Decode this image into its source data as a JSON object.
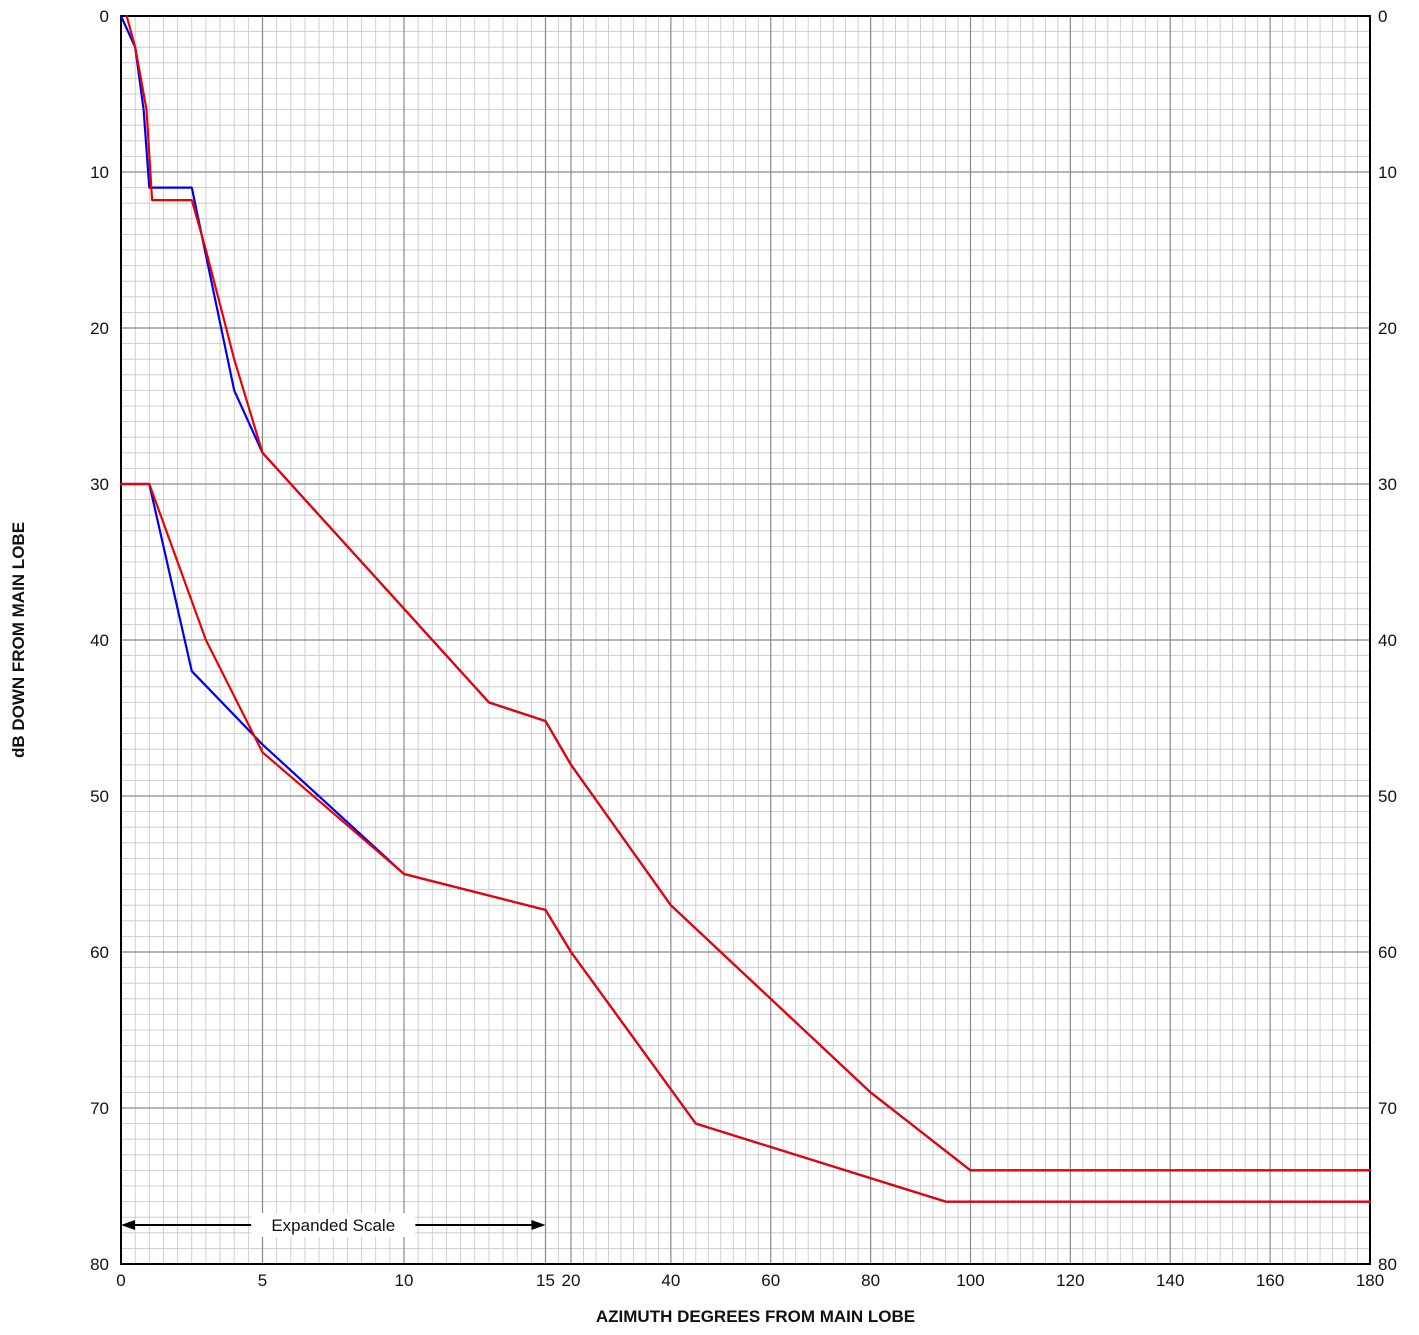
{
  "chart_data": {
    "type": "line",
    "title": "",
    "xlabel": "AZIMUTH DEGREES FROM MAIN LOBE",
    "ylabel": "dB DOWN FROM MAIN LOBE",
    "x_scale": "piecewise: 0-15 expanded scale, 15-180 compressed scale",
    "xlim": [
      0,
      180
    ],
    "ylim": [
      0,
      80
    ],
    "y_inverted": true,
    "grid": true,
    "x_ticks_expanded": [
      0,
      5,
      10,
      15
    ],
    "x_ticks_compressed": [
      20,
      40,
      60,
      80,
      100,
      120,
      140,
      160,
      180
    ],
    "x_tick_labels": [
      "0",
      "5",
      "10",
      "15",
      "20",
      "40",
      "60",
      "80",
      "100",
      "120",
      "140",
      "160",
      "180"
    ],
    "y_ticks": [
      0,
      10,
      20,
      30,
      40,
      50,
      60,
      70,
      80
    ],
    "y_tick_labels": [
      "0",
      "10",
      "20",
      "30",
      "40",
      "50",
      "60",
      "70",
      "80"
    ],
    "colors": {
      "blue": "#0000ee",
      "red": "#ee0000",
      "grid_major": "#888888",
      "grid_minor": "#c4c4c4"
    },
    "annotation": {
      "text": "Expanded Scale",
      "from_x": 0,
      "to_x": 15,
      "y": 77.5
    },
    "series": [
      {
        "color": "blue",
        "points": [
          [
            0,
            0
          ],
          [
            0.5,
            2
          ],
          [
            0.8,
            6
          ],
          [
            1,
            11
          ],
          [
            2.5,
            11
          ],
          [
            4,
            24
          ],
          [
            5,
            28
          ],
          [
            10,
            38
          ],
          [
            13,
            44
          ],
          [
            15,
            45.2
          ],
          [
            20,
            48
          ],
          [
            40,
            57
          ],
          [
            60,
            63
          ],
          [
            80,
            69
          ],
          [
            100,
            74
          ],
          [
            180,
            74
          ]
        ]
      },
      {
        "color": "red",
        "points": [
          [
            0.2,
            0
          ],
          [
            0.5,
            2
          ],
          [
            0.9,
            6
          ],
          [
            1.1,
            11.8
          ],
          [
            2.5,
            11.8
          ],
          [
            3,
            15
          ],
          [
            4,
            22
          ],
          [
            5,
            28
          ],
          [
            10,
            38
          ],
          [
            13,
            44
          ],
          [
            15,
            45.2
          ],
          [
            20,
            48
          ],
          [
            40,
            57
          ],
          [
            60,
            63
          ],
          [
            80,
            69
          ],
          [
            100,
            74
          ],
          [
            180,
            74
          ]
        ]
      },
      {
        "color": "blue",
        "points": [
          [
            0,
            30
          ],
          [
            1,
            30
          ],
          [
            2.5,
            42
          ],
          [
            5,
            46.7
          ],
          [
            10,
            55
          ],
          [
            15,
            57.3
          ],
          [
            20,
            60
          ],
          [
            45,
            71
          ],
          [
            80,
            74.5
          ],
          [
            95,
            76
          ],
          [
            180,
            76
          ]
        ]
      },
      {
        "color": "red",
        "points": [
          [
            0,
            30
          ],
          [
            1,
            30
          ],
          [
            3,
            40
          ],
          [
            5,
            47.2
          ],
          [
            10,
            55
          ],
          [
            15,
            57.3
          ],
          [
            20,
            60
          ],
          [
            45,
            71
          ],
          [
            80,
            74.5
          ],
          [
            95,
            76
          ],
          [
            180,
            76
          ]
        ]
      }
    ]
  }
}
